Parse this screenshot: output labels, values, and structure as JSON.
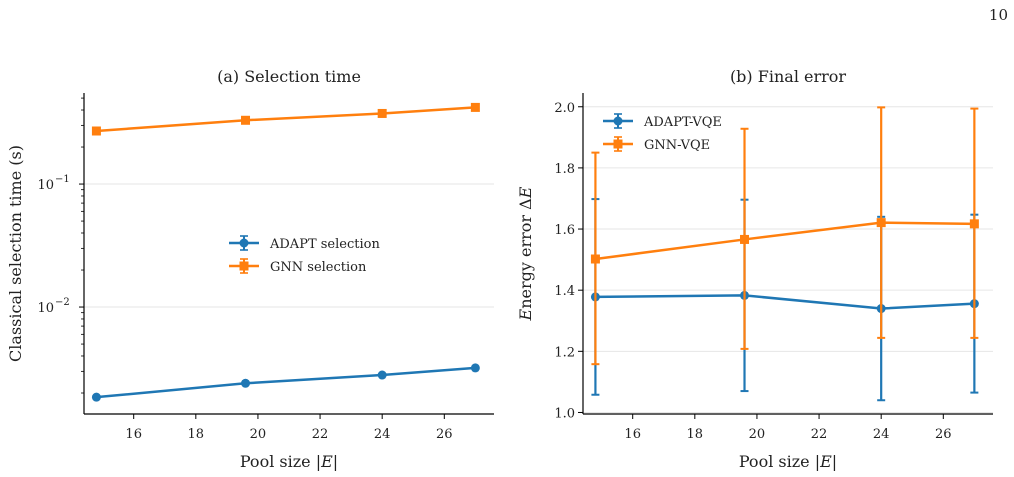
{
  "page_number": "10",
  "chart_data": [
    {
      "type": "line",
      "title": "(a) Selection time",
      "xlabel": "Pool size |E|",
      "ylabel": "Classical selection time (s)",
      "yscale": "log",
      "xlim": [
        14.4,
        27.6
      ],
      "ylim": [
        0.00135,
        0.55
      ],
      "x_ticks": [
        16,
        18,
        20,
        22,
        24,
        26
      ],
      "y_ticks": [
        {
          "value": 0.01,
          "base": "10",
          "exp": "−2"
        },
        {
          "value": 0.1,
          "base": "10",
          "exp": "−1"
        }
      ],
      "grid": "horizontal",
      "legend_position": "center",
      "series": [
        {
          "name": "ADAPT selection",
          "color": "#1f77b4",
          "marker": "circle",
          "x": [
            14.8,
            19.6,
            24.0,
            27.0
          ],
          "y": [
            0.00185,
            0.0024,
            0.0028,
            0.0032
          ]
        },
        {
          "name": "GNN selection",
          "color": "#ff7f0e",
          "marker": "square",
          "x": [
            14.8,
            19.6,
            24.0,
            27.0
          ],
          "y": [
            0.27,
            0.33,
            0.375,
            0.42
          ]
        }
      ]
    },
    {
      "type": "line",
      "title": "(b) Final error",
      "xlabel": "Pool size |E|",
      "ylabel": "Energy error ΔE",
      "xlim": [
        14.4,
        27.6
      ],
      "ylim": [
        0.995,
        2.045
      ],
      "x_ticks": [
        16,
        18,
        20,
        22,
        24,
        26
      ],
      "y_ticks": [
        1.0,
        1.2,
        1.4,
        1.6,
        1.8,
        2.0
      ],
      "grid": "horizontal",
      "legend_position": "top-left",
      "series": [
        {
          "name": "ADAPT-VQE",
          "color": "#1f77b4",
          "marker": "circle",
          "x": [
            14.8,
            19.6,
            24.0,
            27.0
          ],
          "y": [
            1.378,
            1.383,
            1.34,
            1.356
          ],
          "yerr_low": [
            1.058,
            1.07,
            1.04,
            1.065
          ],
          "yerr_high": [
            1.698,
            1.696,
            1.64,
            1.647
          ]
        },
        {
          "name": "GNN-VQE",
          "color": "#ff7f0e",
          "marker": "square",
          "x": [
            14.8,
            19.6,
            24.0,
            27.0
          ],
          "y": [
            1.502,
            1.566,
            1.621,
            1.617
          ],
          "yerr_low": [
            1.158,
            1.208,
            1.244,
            1.244
          ],
          "yerr_high": [
            1.85,
            1.928,
            1.998,
            1.994
          ]
        }
      ]
    }
  ]
}
